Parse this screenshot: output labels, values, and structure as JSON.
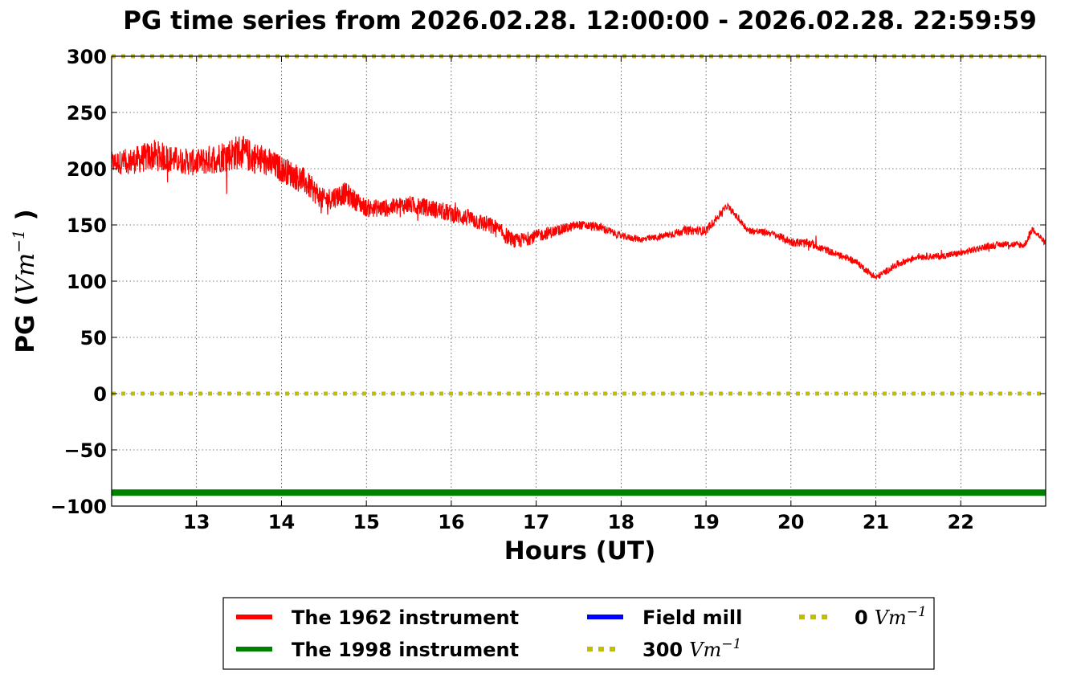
{
  "chart_data": {
    "type": "line",
    "title": "PG time series from 2026.02.28. 12:00:00 - 2026.02.28. 22:59:59",
    "xlabel": "Hours (UT)",
    "ylabel_text": "PG (",
    "ylabel_unit": "Vm",
    "ylabel_exp": "−1",
    "ylabel_close": ")",
    "xlim": [
      12,
      23
    ],
    "ylim": [
      -100,
      300
    ],
    "xticks": [
      13,
      14,
      15,
      16,
      17,
      18,
      19,
      20,
      21,
      22
    ],
    "xtick_labels": [
      "13",
      "14",
      "15",
      "16",
      "17",
      "18",
      "19",
      "20",
      "21",
      "22"
    ],
    "yticks": [
      -100,
      -50,
      0,
      50,
      100,
      150,
      200,
      250,
      300
    ],
    "ytick_labels": [
      "−100",
      "−50",
      "0",
      "50",
      "100",
      "150",
      "200",
      "250",
      "300"
    ],
    "grid": true,
    "legend_position": "below chart",
    "series": [
      {
        "name": "The 1962 instrument",
        "color": "#ff0000",
        "style": "solid",
        "x": [
          12.0,
          12.25,
          12.5,
          12.75,
          13.0,
          13.25,
          13.5,
          13.75,
          14.0,
          14.25,
          14.5,
          14.75,
          15.0,
          15.25,
          15.5,
          15.75,
          16.0,
          16.25,
          16.5,
          16.75,
          17.0,
          17.25,
          17.5,
          17.75,
          18.0,
          18.25,
          18.5,
          18.75,
          19.0,
          19.25,
          19.5,
          19.75,
          20.0,
          20.25,
          20.5,
          20.75,
          21.0,
          21.25,
          21.5,
          21.75,
          22.0,
          22.25,
          22.5,
          22.75,
          22.85,
          23.0
        ],
        "y": [
          205,
          207,
          212,
          208,
          205,
          210,
          215,
          208,
          200,
          190,
          172,
          178,
          165,
          165,
          168,
          165,
          160,
          155,
          148,
          135,
          140,
          145,
          150,
          148,
          140,
          137,
          140,
          145,
          145,
          167,
          145,
          143,
          135,
          133,
          125,
          118,
          103,
          115,
          122,
          122,
          125,
          130,
          133,
          132,
          147,
          133
        ],
        "noise": [
          10,
          12,
          14,
          12,
          12,
          14,
          16,
          14,
          12,
          12,
          10,
          10,
          8,
          8,
          8,
          8,
          8,
          8,
          8,
          7,
          6,
          5,
          4,
          4,
          3,
          3,
          3,
          4,
          4,
          3,
          3,
          3,
          4,
          4,
          3,
          3,
          3,
          3,
          3,
          3,
          3,
          3,
          3,
          3,
          3,
          3
        ]
      },
      {
        "name": "The 1998 instrument",
        "color": "#008000",
        "style": "solid",
        "x": [
          12,
          23
        ],
        "y": [
          -88,
          -88
        ]
      },
      {
        "name": "Field mill",
        "color": "#0000ff",
        "style": "solid",
        "x": [],
        "y": []
      },
      {
        "name": "300",
        "name_unit": "Vm",
        "name_exp": "−1",
        "color": "#bfbf00",
        "style": "dotted",
        "x": [
          12,
          23
        ],
        "y": [
          300,
          300
        ]
      },
      {
        "name": "0",
        "name_unit": "Vm",
        "name_exp": "−1",
        "color": "#bfbf00",
        "style": "dotted",
        "x": [
          12,
          23
        ],
        "y": [
          0,
          0
        ]
      }
    ]
  }
}
